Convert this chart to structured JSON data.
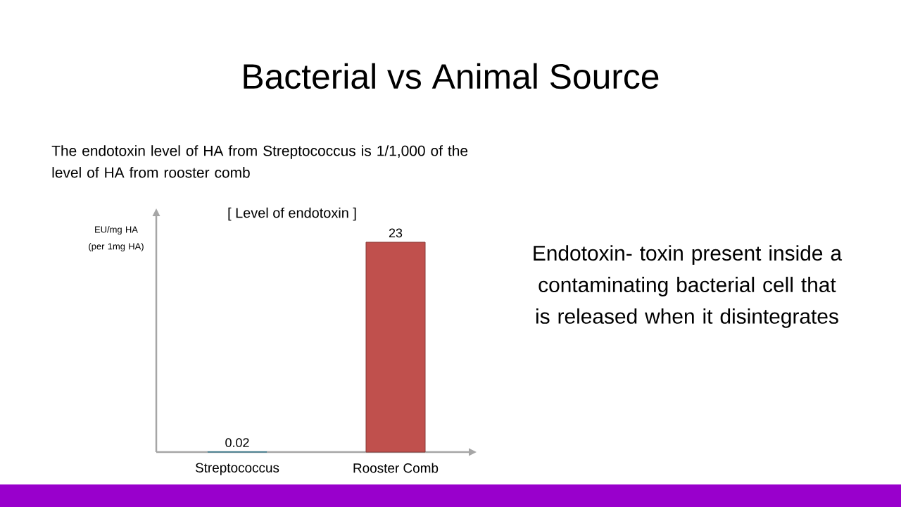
{
  "chart_data": {
    "type": "bar",
    "title": "Bacterial vs Animal Source",
    "subtitle": "The endotoxin level of HA from Streptococcus is 1/1,000 of the level of HA from rooster comb",
    "ylabel": "EU/mg HA (per 1mg HA)",
    "annotations": [
      "[ Level of endotoxin ]",
      "Endotoxin- toxin present inside a contaminating bacterial cell that is released when it disintegrates"
    ],
    "categories": [
      "Streptococcus",
      "Rooster Comb"
    ],
    "values": [
      0.02,
      23
    ],
    "colors": [
      "#4bacc6",
      "#c0504d"
    ],
    "data_labels": true
  }
}
